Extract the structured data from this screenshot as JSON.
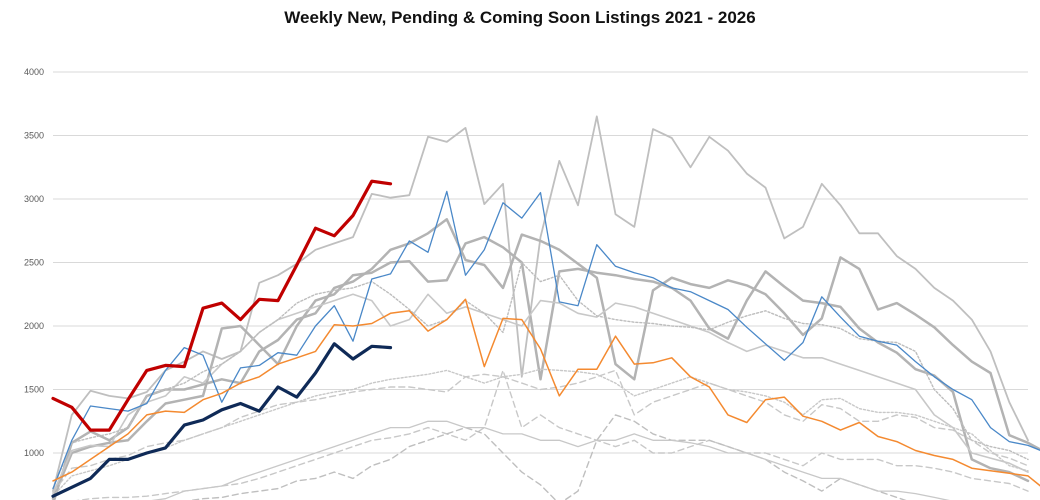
{
  "chart_data": {
    "type": "line",
    "title": "Weekly New, Pending & Coming Soon Listings 2021 - 2026",
    "xlabel": "",
    "ylabel": "",
    "ylim": [
      550,
      4000
    ],
    "y_ticks": [
      1000,
      1500,
      2000,
      2500,
      3000,
      3500,
      4000
    ],
    "x_count": 52,
    "grid": true,
    "legend": "none",
    "series": [
      {
        "color": "#bfbfbf",
        "width": 1.8,
        "dash": "",
        "values": [
          700,
          1300,
          1490,
          1450,
          1430,
          1480,
          1650,
          1720,
          1800,
          1740,
          1800,
          2340,
          2400,
          2490,
          2600,
          2650,
          2700,
          3040,
          3010,
          3030,
          3490,
          3450,
          3560,
          2960,
          3120,
          1600,
          2700,
          3300,
          2950,
          3650,
          2880,
          2780,
          3550,
          3480,
          3250,
          3490,
          3380,
          3200,
          3090,
          2690,
          2780,
          3120,
          2950,
          2730,
          2730,
          2550,
          2450,
          2300,
          2200,
          2050,
          1800,
          1400,
          1100
        ]
      },
      {
        "color": "#b3b3b3",
        "width": 2.5,
        "dash": "",
        "values": [
          600,
          1080,
          1170,
          1100,
          1200,
          1450,
          1500,
          1500,
          1540,
          1580,
          1550,
          1800,
          1890,
          2050,
          2100,
          2300,
          2350,
          2450,
          2600,
          2650,
          2730,
          2840,
          2520,
          2480,
          2300,
          2720,
          2670,
          2600,
          2490,
          2380,
          1700,
          1580,
          2280,
          2380,
          2330,
          2300,
          2360,
          2320,
          2250,
          2100,
          1930,
          2060,
          2540,
          2450,
          2130,
          2180,
          2090,
          1990,
          1850,
          1720,
          1630,
          1140,
          1080,
          1000
        ]
      },
      {
        "color": "#b3b3b3",
        "width": 2.5,
        "dash": "",
        "values": [
          640,
          1000,
          1050,
          1080,
          1100,
          1250,
          1390,
          1420,
          1450,
          1980,
          2000,
          1850,
          1700,
          2000,
          2200,
          2250,
          2400,
          2420,
          2500,
          2510,
          2350,
          2360,
          2650,
          2700,
          2620,
          2500,
          1580,
          2430,
          2450,
          2420,
          2400,
          2370,
          2350,
          2300,
          2200,
          1980,
          1900,
          2200,
          2430,
          2310,
          2200,
          2180,
          2150,
          1980,
          1870,
          1790,
          1660,
          1610,
          1480,
          950,
          880,
          850,
          780
        ]
      },
      {
        "color": "#c8c8c8",
        "width": 1.6,
        "dash": "",
        "values": [
          680,
          1020,
          1060,
          1050,
          1300,
          1400,
          1450,
          1600,
          1550,
          1700,
          1800,
          1950,
          2050,
          2100,
          2150,
          2200,
          2250,
          2200,
          2000,
          2050,
          2250,
          2100,
          2150,
          2100,
          2050,
          2000,
          2200,
          2180,
          2100,
          2070,
          2180,
          2150,
          2100,
          2050,
          2000,
          1950,
          1870,
          1800,
          1850,
          1800,
          1750,
          1750,
          1700,
          1650,
          1600,
          1550,
          1500,
          1300,
          1200,
          1000,
          960,
          920,
          850
        ]
      },
      {
        "color": "#bdbdbd",
        "width": 1.4,
        "dash": "2,2",
        "values": [
          720,
          1080,
          1120,
          1150,
          1200,
          1450,
          1500,
          1550,
          1640,
          1700,
          1800,
          1950,
          2050,
          2180,
          2250,
          2280,
          2300,
          2350,
          2250,
          2130,
          2000,
          2050,
          2200,
          2100,
          1950,
          2500,
          2350,
          2400,
          2200,
          2080,
          2050,
          2030,
          2020,
          2000,
          1990,
          1970,
          2030,
          2080,
          2120,
          2060,
          2020,
          2010,
          1980,
          1900,
          1880,
          1870,
          1800,
          1500,
          1350,
          1100,
          1050,
          1020,
          950
        ]
      },
      {
        "color": "#c8c8c8",
        "width": 1.4,
        "dash": "6,4",
        "values": [
          690,
          880,
          900,
          950,
          980,
          1050,
          1080,
          1100,
          1150,
          1200,
          1280,
          1330,
          1380,
          1400,
          1420,
          1450,
          1480,
          1500,
          1520,
          1520,
          1500,
          1480,
          1600,
          1620,
          1600,
          1550,
          1500,
          1520,
          1550,
          1600,
          1650,
          1300,
          1400,
          1450,
          1500,
          1550,
          1500,
          1450,
          1400,
          1300,
          1250,
          1380,
          1350,
          1250,
          1250,
          1300,
          1280,
          1200,
          1180,
          1100,
          1000,
          960,
          900
        ]
      },
      {
        "color": "#c8c8c8",
        "width": 1.4,
        "dash": "2,2",
        "values": [
          660,
          820,
          860,
          900,
          950,
          1000,
          1040,
          1100,
          1150,
          1200,
          1250,
          1300,
          1350,
          1400,
          1450,
          1480,
          1500,
          1550,
          1580,
          1600,
          1620,
          1650,
          1600,
          1550,
          1600,
          1620,
          1660,
          1650,
          1640,
          1620,
          1550,
          1450,
          1500,
          1550,
          1600,
          1550,
          1500,
          1480,
          1450,
          1400,
          1300,
          1420,
          1430,
          1350,
          1320,
          1320,
          1300,
          1250,
          1200,
          1150,
          1020,
          900,
          860
        ]
      },
      {
        "color": "#c8c8c8",
        "width": 1.4,
        "dash": "6,4",
        "values": [
          600,
          620,
          640,
          650,
          650,
          660,
          680,
          700,
          720,
          740,
          760,
          800,
          850,
          900,
          950,
          1000,
          1050,
          1100,
          1120,
          1150,
          1200,
          1150,
          1100,
          1200,
          1650,
          1200,
          1300,
          1200,
          1150,
          1100,
          1050,
          1100,
          1000,
          1000,
          1050,
          1100,
          1050,
          1000,
          1000,
          950,
          900,
          1000,
          950,
          950,
          950,
          900,
          900,
          880,
          850,
          800,
          780,
          760,
          700
        ]
      },
      {
        "color": "#bfbfbf",
        "width": 1.4,
        "dash": "6,4",
        "values": [
          560,
          570,
          580,
          580,
          590,
          600,
          610,
          620,
          640,
          650,
          680,
          700,
          720,
          780,
          800,
          850,
          800,
          900,
          950,
          1050,
          1100,
          1150,
          1200,
          1150,
          1000,
          850,
          750,
          600,
          700,
          1100,
          1300,
          1250,
          1150,
          1100,
          1100,
          1100,
          1050,
          1000,
          950,
          850,
          780,
          700,
          800,
          750,
          700,
          650,
          600,
          600,
          600,
          600,
          600,
          600,
          600
        ]
      },
      {
        "color": "#c8c8c8",
        "width": 1.3,
        "dash": "",
        "values": [
          560,
          570,
          580,
          590,
          600,
          620,
          640,
          700,
          720,
          740,
          800,
          850,
          900,
          950,
          1000,
          1050,
          1100,
          1150,
          1200,
          1200,
          1250,
          1250,
          1200,
          1200,
          1150,
          1150,
          1100,
          1100,
          1050,
          1100,
          1100,
          1150,
          1100,
          1100,
          1080,
          1050,
          1000,
          1000,
          950,
          900,
          850,
          800,
          800,
          750,
          700,
          700,
          680,
          650,
          620,
          600,
          600,
          600,
          600
        ]
      },
      {
        "color": "#4a88c8",
        "width": 1.3,
        "dash": "",
        "values": [
          720,
          1100,
          1370,
          1350,
          1330,
          1390,
          1650,
          1830,
          1770,
          1400,
          1670,
          1690,
          1790,
          1770,
          2000,
          2160,
          1880,
          2370,
          2410,
          2670,
          2580,
          3060,
          2400,
          2600,
          2970,
          2850,
          3050,
          2190,
          2160,
          2640,
          2470,
          2420,
          2380,
          2300,
          2270,
          2200,
          2130,
          1990,
          1860,
          1730,
          1870,
          2230,
          2070,
          1920,
          1880,
          1850,
          1720,
          1600,
          1500,
          1420,
          1200,
          1090,
          1060,
          1000
        ]
      },
      {
        "color": "#f48a30",
        "width": 1.5,
        "dash": "",
        "values": [
          780,
          850,
          950,
          1050,
          1150,
          1300,
          1330,
          1320,
          1420,
          1470,
          1550,
          1600,
          1700,
          1750,
          1800,
          2010,
          2000,
          2020,
          2100,
          2120,
          1960,
          2050,
          2210,
          1680,
          2060,
          2050,
          1820,
          1450,
          1660,
          1660,
          1920,
          1700,
          1710,
          1750,
          1600,
          1520,
          1300,
          1240,
          1420,
          1440,
          1290,
          1250,
          1180,
          1240,
          1130,
          1090,
          1020,
          980,
          950,
          880,
          860,
          840,
          820,
          700
        ]
      },
      {
        "color": "#c00000",
        "width": 3.2,
        "dash": "",
        "values": [
          1430,
          1360,
          1180,
          1180,
          1420,
          1650,
          1690,
          1680,
          2140,
          2180,
          2050,
          2210,
          2200,
          2480,
          2770,
          2710,
          2870,
          3140,
          3120
        ]
      },
      {
        "color": "#0f2a57",
        "width": 3.2,
        "dash": "",
        "values": [
          660,
          730,
          800,
          950,
          950,
          1000,
          1040,
          1220,
          1260,
          1340,
          1390,
          1330,
          1520,
          1440,
          1630,
          1860,
          1740,
          1840,
          1830
        ]
      }
    ]
  }
}
